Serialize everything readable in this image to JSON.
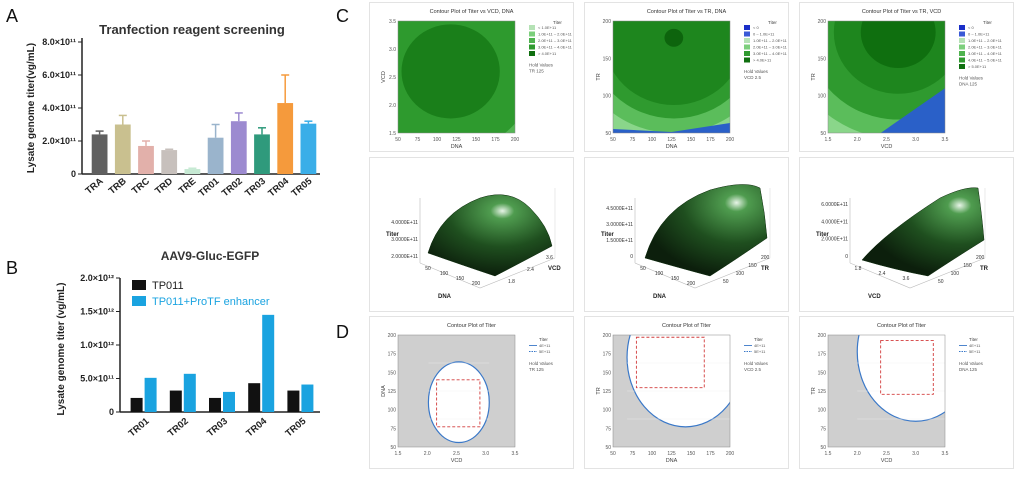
{
  "panel_labels": {
    "a": "A",
    "b": "B",
    "c": "C",
    "d": "D"
  },
  "colors": {
    "black": "#111111",
    "blue": "#1aa3e0",
    "greens": [
      "#b5e2b5",
      "#7ccf7c",
      "#4fb34f",
      "#2f9a2f",
      "#1f881f",
      "#0f6f0f"
    ],
    "contour_blue": "#2a60c8",
    "boundary_blue": "#3a78c8",
    "box_red": "#d23b3b",
    "shade": "#cfcfcf"
  },
  "chart_data": [
    {
      "type": "bar",
      "id": "A",
      "title": "Tranfection reagent screening",
      "ylabel": "Lysate genome titer(vg/mL)",
      "yticks": [
        "0",
        "2.0×10¹¹",
        "4.0×10¹¹",
        "6.0×10¹¹",
        "8.0×10¹¹"
      ],
      "ylim": [
        0,
        800000000000.0
      ],
      "categories": [
        "TRA",
        "TRB",
        "TRC",
        "TRD",
        "TRE",
        "TR01",
        "TR02",
        "TR03",
        "TR04",
        "TR05"
      ],
      "values": [
        240000000000.0,
        300000000000.0,
        170000000000.0,
        145000000000.0,
        30000000000.0,
        220000000000.0,
        320000000000.0,
        240000000000.0,
        430000000000.0,
        305000000000.0
      ],
      "errors": [
        20000000000.0,
        55000000000.0,
        30000000000.0,
        5000000000.0,
        5000000000.0,
        80000000000.0,
        50000000000.0,
        40000000000.0,
        170000000000.0,
        15000000000.0
      ],
      "colors": [
        "#606060",
        "#c9c08f",
        "#e2b0aa",
        "#c7c0bc",
        "#c6e9d3",
        "#9ab4cc",
        "#9c8ad0",
        "#2f9a7c",
        "#f59a3c",
        "#3aaee8"
      ]
    },
    {
      "type": "bar",
      "id": "B",
      "title": "AAV9-Gluc-EGFP",
      "ylabel": "Lysate genome titer (vg/mL)",
      "yticks": [
        "0",
        "5.0×10¹¹",
        "1.0×10¹²",
        "1.5×10¹²",
        "2.0×10¹²"
      ],
      "ylim": [
        0,
        2000000000000.0
      ],
      "categories": [
        "TR01",
        "TR02",
        "TR03",
        "TR04",
        "TR05"
      ],
      "legend_position": "top",
      "series": [
        {
          "name": "TP011",
          "values": [
            210000000000.0,
            320000000000.0,
            210000000000.0,
            430000000000.0,
            320000000000.0
          ]
        },
        {
          "name": "TP011+ProTF enhancer",
          "values": [
            510000000000.0,
            570000000000.0,
            300000000000.0,
            1450000000000.0,
            410000000000.0
          ]
        }
      ]
    },
    {
      "type": "contour",
      "id": "C1",
      "title": "Contour Plot of Titer vs VCD, DNA",
      "xlabel": "DNA",
      "ylabel": "VCD",
      "xticks": [
        "50",
        "75",
        "100",
        "125",
        "150",
        "175",
        "200"
      ],
      "yticks": [
        "1.5",
        "2.0",
        "2.5",
        "3.0",
        "3.5"
      ],
      "legend_title": "Titer",
      "legend": [
        "< 1.0E+11",
        "1.0E+11 – 2.0E+11",
        "2.0E+11 – 3.0E+11",
        "3.0E+11 – 4.0E+11",
        "> 4.0E+11"
      ],
      "hold_title": "Hold Values",
      "hold_values": "TR  125"
    },
    {
      "type": "contour",
      "id": "C2",
      "title": "Contour Plot of Titer vs TR, DNA",
      "xlabel": "DNA",
      "ylabel": "TR",
      "xticks": [
        "50",
        "75",
        "100",
        "125",
        "150",
        "175",
        "200"
      ],
      "yticks": [
        "50",
        "100",
        "150",
        "200"
      ],
      "legend_title": "Titer",
      "legend": [
        "< 0",
        "0 – 1.0E+11",
        "1.0E+11 – 2.0E+11",
        "2.0E+11 – 3.0E+11",
        "3.0E+11 – 4.0E+11",
        "> 4.0E+11"
      ],
      "hold_title": "Hold Values",
      "hold_values": "VCD  2.5"
    },
    {
      "type": "contour",
      "id": "C3",
      "title": "Contour Plot of Titer vs TR, VCD",
      "xlabel": "VCD",
      "ylabel": "TR",
      "xticks": [
        "1.5",
        "2.0",
        "2.5",
        "3.0",
        "3.5"
      ],
      "yticks": [
        "50",
        "100",
        "150",
        "200"
      ],
      "legend_title": "Titer",
      "legend": [
        "< 0",
        "0 – 1.0E+11",
        "1.0E+11 – 2.0E+11",
        "2.0E+11 – 3.0E+11",
        "3.0E+11 – 4.0E+11",
        "4.0E+11 – 5.0E+11",
        "> 5.0E+11"
      ],
      "hold_title": "Hold Values",
      "hold_values": "DNA  125"
    },
    {
      "type": "surface",
      "id": "S1",
      "zlabel": "Titer",
      "zticks": [
        "2.0000E+11",
        "3.0000E+11",
        "4.0000E+11"
      ],
      "xlabel": "DNA",
      "xticks": [
        "50",
        "100",
        "150",
        "200"
      ],
      "ylabel": "VCD",
      "yticks": [
        "1.8",
        "2.4",
        "3.6"
      ]
    },
    {
      "type": "surface",
      "id": "S2",
      "zlabel": "Titer",
      "zticks": [
        "0",
        "1.5000E+11",
        "3.0000E+11",
        "4.5000E+11"
      ],
      "xlabel": "DNA",
      "xticks": [
        "50",
        "100",
        "150",
        "200"
      ],
      "ylabel": "TR",
      "yticks": [
        "50",
        "100",
        "150",
        "200"
      ]
    },
    {
      "type": "surface",
      "id": "S3",
      "zlabel": "Titer",
      "zticks": [
        "0",
        "2.0000E+11",
        "4.0000E+11",
        "6.0000E+11"
      ],
      "xlabel": "VCD",
      "xticks": [
        "1.8",
        "2.4",
        "3.6"
      ],
      "ylabel": "TR",
      "yticks": [
        "50",
        "100",
        "150",
        "200"
      ]
    },
    {
      "type": "overlaid-contour",
      "id": "D1",
      "title": "Contour Plot of Titer",
      "xlabel": "VCD",
      "ylabel": "DNA",
      "xticks": [
        "1.5",
        "2.0",
        "2.5",
        "3.0",
        "3.5"
      ],
      "yticks": [
        "50",
        "75",
        "100",
        "125",
        "150",
        "175",
        "200"
      ],
      "legend_title": "Titer",
      "legend": [
        "4E+11",
        "5E+11"
      ],
      "hold_title": "Hold Values",
      "hold_values": "TR  125"
    },
    {
      "type": "overlaid-contour",
      "id": "D2",
      "title": "Contour Plot of Titer",
      "xlabel": "DNA",
      "ylabel": "TR",
      "xticks": [
        "50",
        "75",
        "100",
        "125",
        "150",
        "175",
        "200"
      ],
      "yticks": [
        "50",
        "75",
        "100",
        "125",
        "150",
        "175",
        "200"
      ],
      "legend_title": "Titer",
      "legend": [
        "4E+11",
        "5E+11"
      ],
      "hold_title": "Hold Values",
      "hold_values": "VCD  2.5"
    },
    {
      "type": "overlaid-contour",
      "id": "D3",
      "title": "Contour Plot of Titer",
      "xlabel": "VCD",
      "ylabel": "TR",
      "xticks": [
        "1.5",
        "2.0",
        "2.5",
        "3.0",
        "3.5"
      ],
      "yticks": [
        "50",
        "75",
        "100",
        "125",
        "150",
        "175",
        "200"
      ],
      "legend_title": "Titer",
      "legend": [
        "4E+11",
        "5E+11"
      ],
      "hold_title": "Hold Values",
      "hold_values": "DNA  125"
    }
  ]
}
